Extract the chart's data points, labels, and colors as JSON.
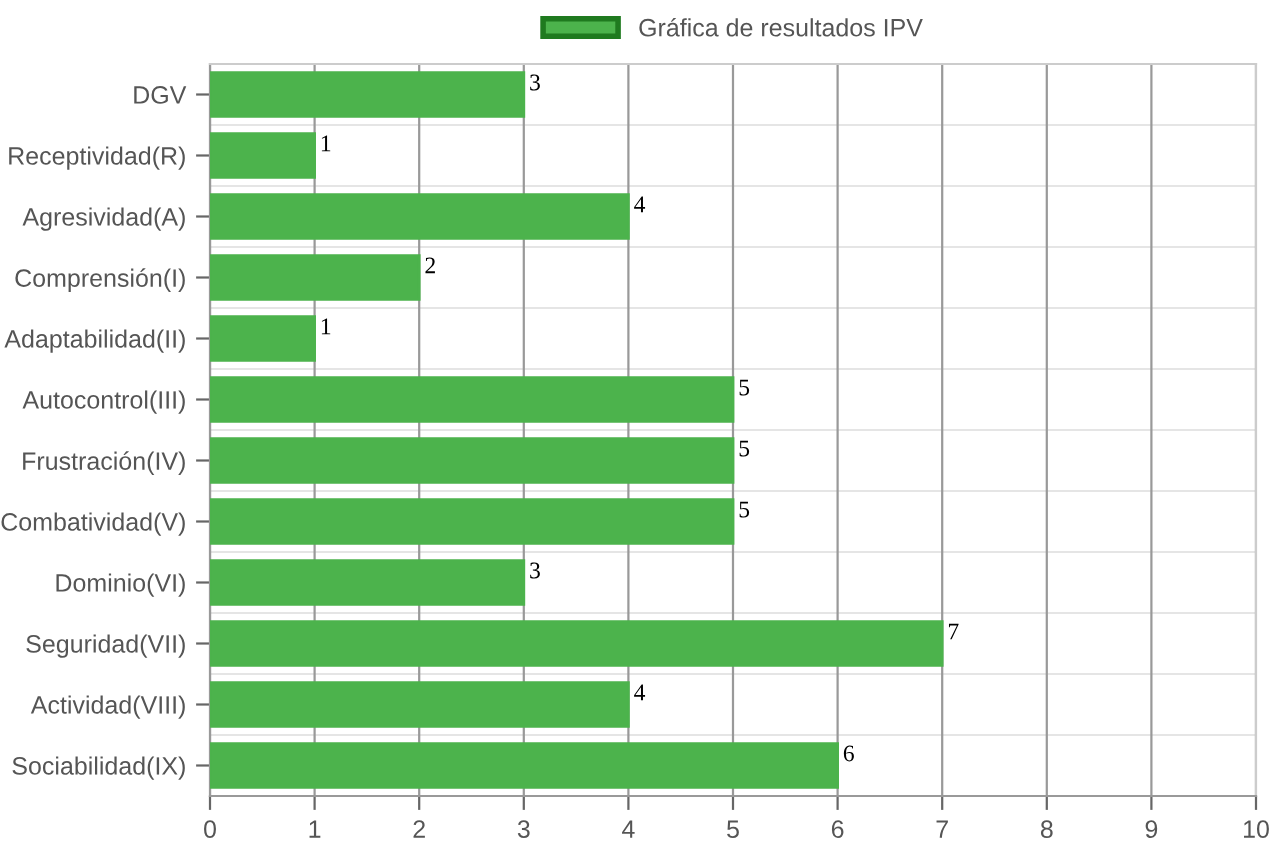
{
  "chart_data": {
    "type": "bar",
    "orientation": "horizontal",
    "categories": [
      "DGV",
      "Receptividad(R)",
      "Agresividad(A)",
      "Comprensión(I)",
      "Adaptabilidad(II)",
      "Autocontrol(III)",
      "Frustración(IV)",
      "Combatividad(V)",
      "Dominio(VI)",
      "Seguridad(VII)",
      "Actividad(VIII)",
      "Sociabilidad(IX)"
    ],
    "series": [
      {
        "name": "Gráfica de resultados IPV",
        "color": "#4cb34c",
        "values": [
          3,
          1,
          4,
          2,
          1,
          5,
          5,
          5,
          3,
          7,
          4,
          6
        ]
      }
    ],
    "xlim": [
      0,
      10
    ],
    "xticks": [
      0,
      1,
      2,
      3,
      4,
      5,
      6,
      7,
      8,
      9,
      10
    ],
    "grid": true,
    "legend": "top",
    "data_labels": true
  }
}
